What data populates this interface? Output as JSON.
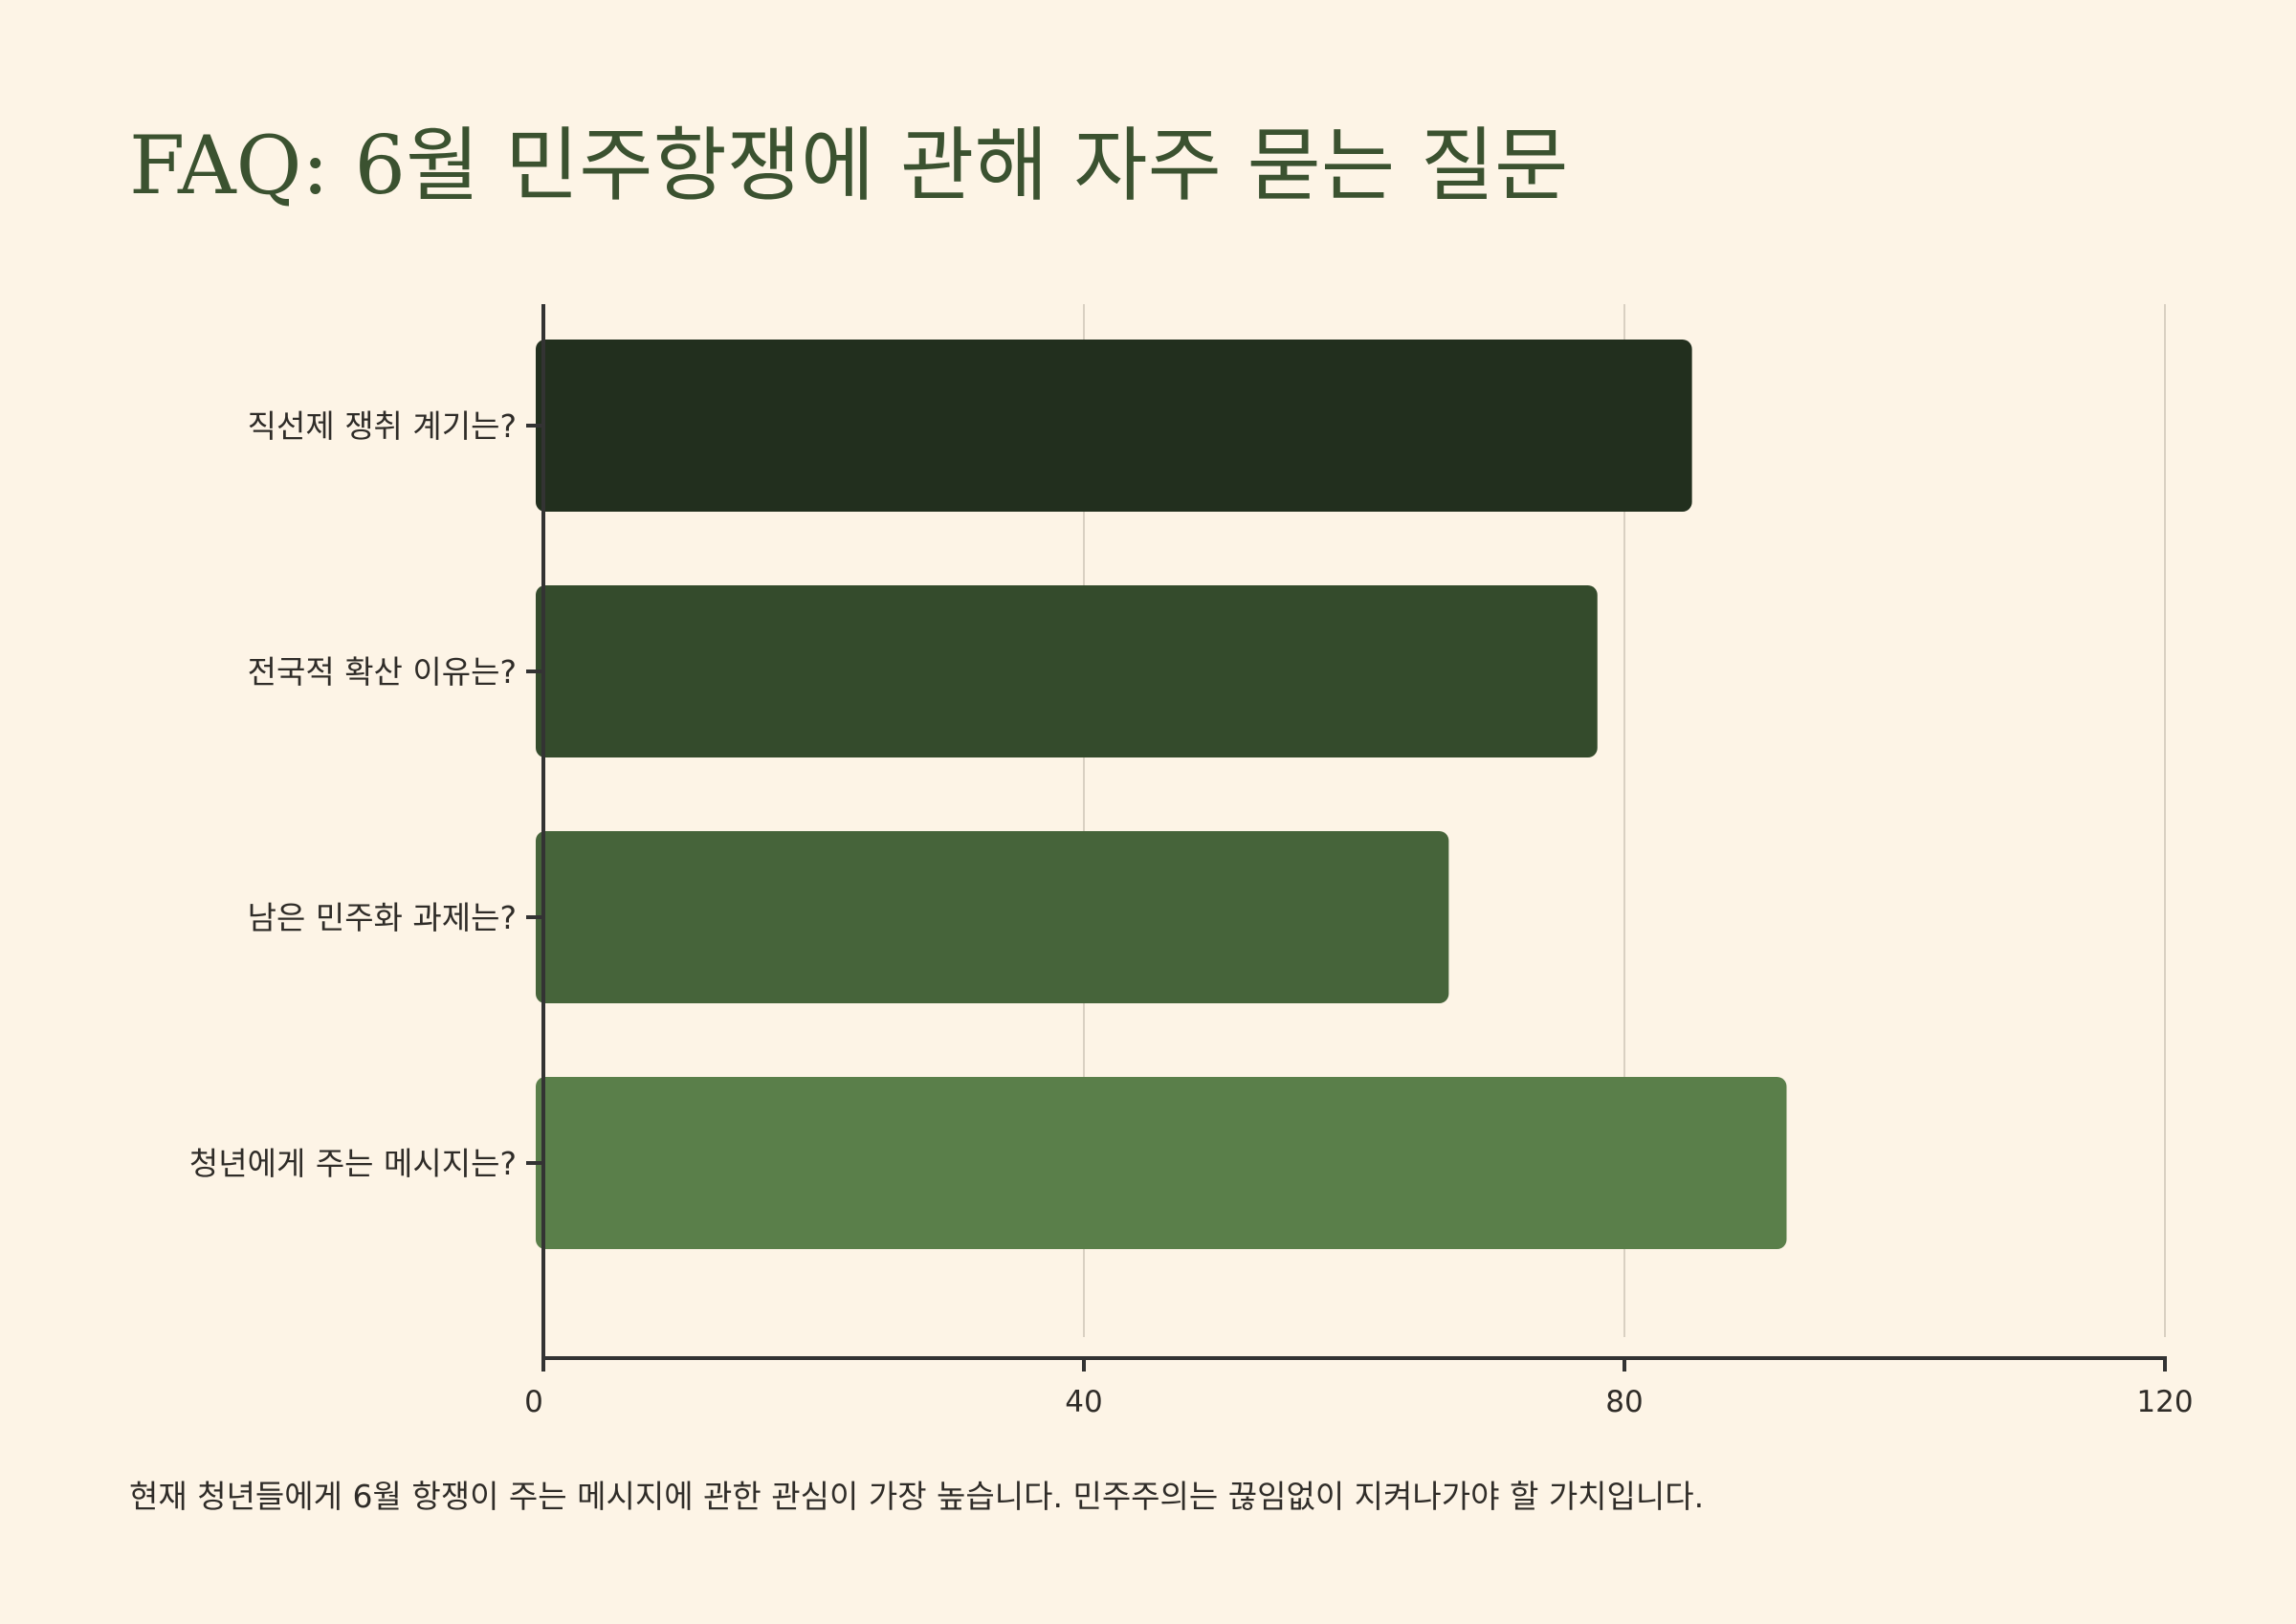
{
  "title": "FAQ: 6월 민주항쟁에 관해 자주 묻는 질문",
  "caption": "현재 청년들에게 6월 항쟁이 주는 메시지에 관한 관심이 가장 높습니다. 민주주의는 끊임없이 지켜나가야 할 가치입니다.",
  "chart_data": {
    "type": "bar",
    "orientation": "horizontal",
    "categories": [
      "직선제 쟁취 계기는?",
      "전국적 확산 이유는?",
      "남은 민주화 과제는?",
      "청년에게 주는 메시지는?"
    ],
    "values": [
      85,
      78,
      67,
      92
    ],
    "xlim": [
      0,
      120
    ],
    "xticks": [
      "0",
      "40",
      "80",
      "120"
    ],
    "grid": true,
    "colors": [
      "#222f1e",
      "#344b2c",
      "#46643a",
      "#5a7f4a"
    ],
    "gridColor": "#d9d0c2",
    "axisColor": "#333333",
    "labelColor": "#2f2c28"
  }
}
